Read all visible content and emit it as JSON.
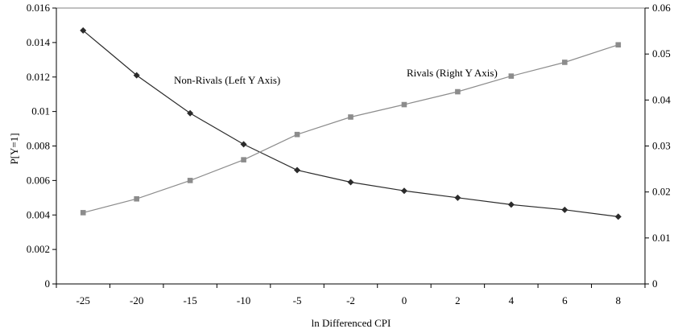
{
  "chart_data": {
    "type": "line",
    "xlabel": "ln Differenced CPI",
    "ylabel": "P[Y=1]",
    "categories": [
      "-25",
      "-20",
      "-15",
      "-10",
      "-5",
      "-2",
      "0",
      "2",
      "4",
      "6",
      "8"
    ],
    "y_left": {
      "lim": [
        0,
        0.016
      ],
      "ticks": [
        "0",
        "0.002",
        "0.004",
        "0.006",
        "0.008",
        "0.01",
        "0.012",
        "0.014",
        "0.016"
      ]
    },
    "y_right": {
      "lim": [
        0,
        0.06
      ],
      "ticks": [
        "0",
        "0.01",
        "0.02",
        "0.03",
        "0.04",
        "0.05",
        "0.06"
      ]
    },
    "series": [
      {
        "name": "Non-Rivals (Left Y Axis)",
        "axis": "left",
        "marker": "diamond",
        "color": "#2b2b2b",
        "values": [
          0.0147,
          0.0121,
          0.0099,
          0.0081,
          0.0066,
          0.0059,
          0.0054,
          0.005,
          0.0046,
          0.0043,
          0.0039
        ]
      },
      {
        "name": "Rivals (Right Y Axis)",
        "axis": "right",
        "marker": "square",
        "color": "#8c8c8c",
        "values": [
          0.0155,
          0.0185,
          0.0225,
          0.027,
          0.0325,
          0.0363,
          0.039,
          0.0418,
          0.0452,
          0.0482,
          0.052
        ]
      }
    ],
    "grid": false,
    "legend": "none"
  }
}
